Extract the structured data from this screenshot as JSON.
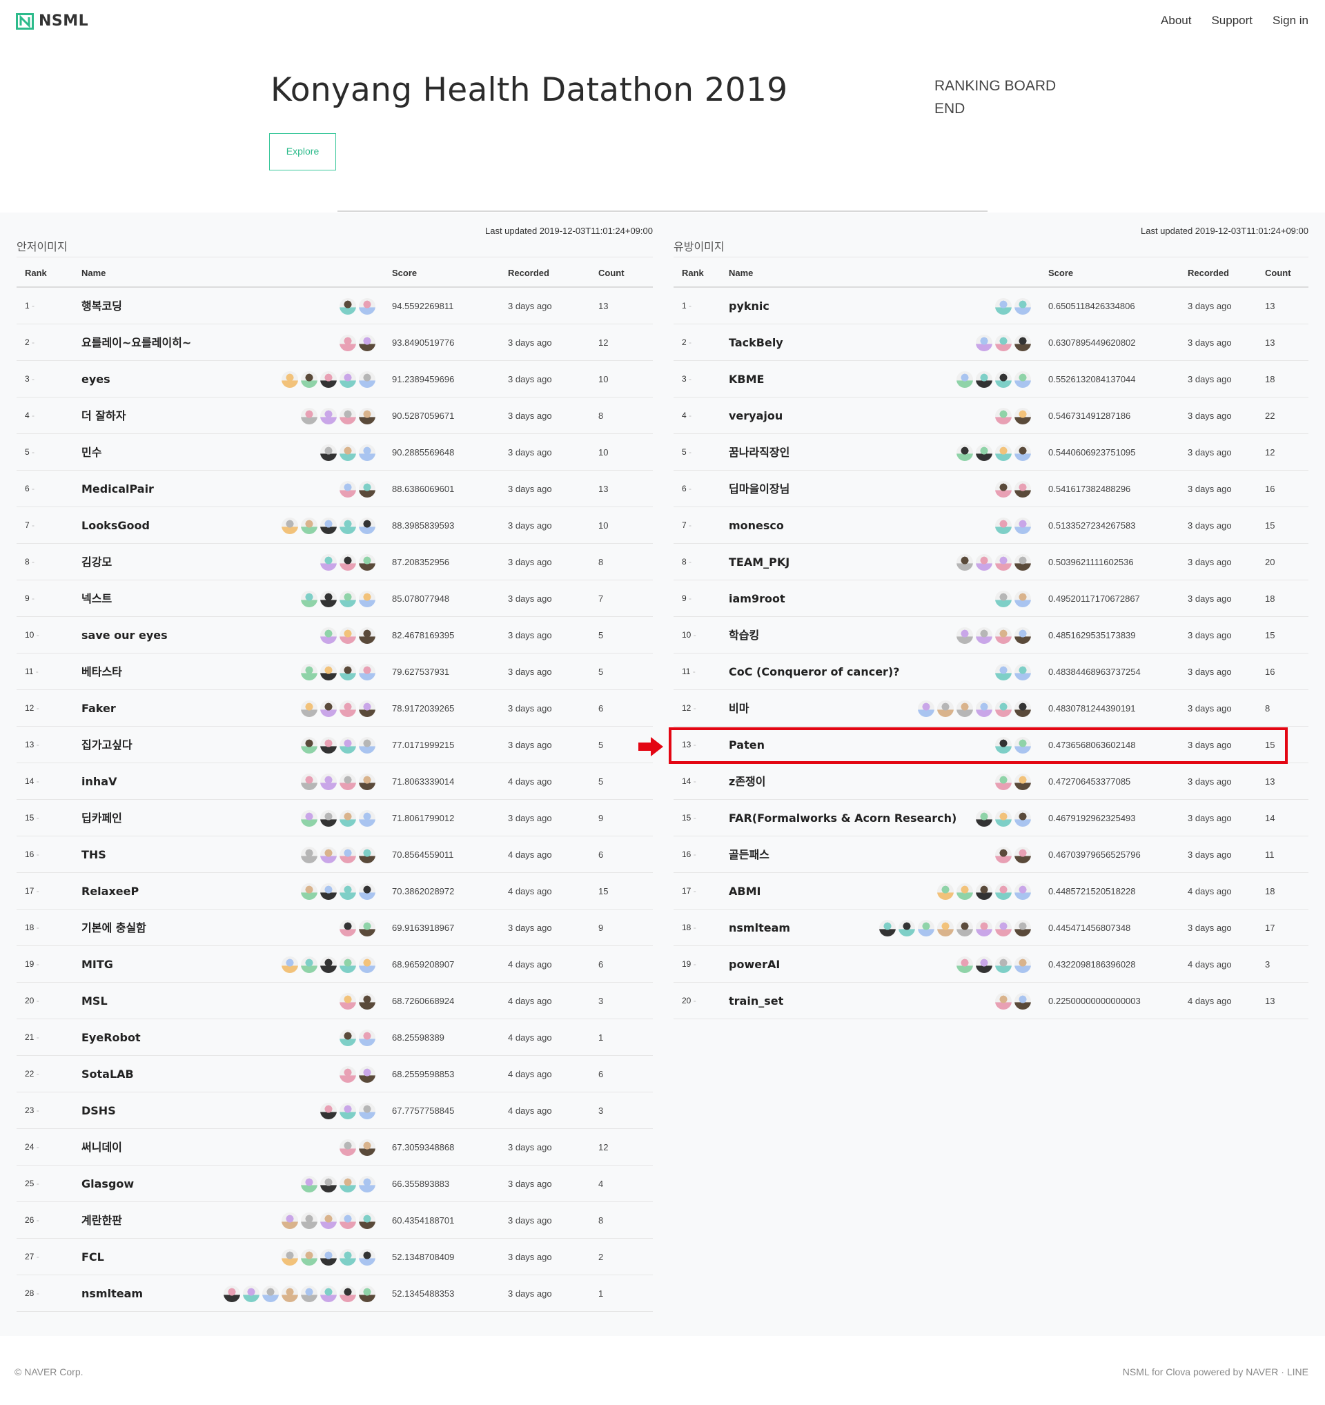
{
  "header": {
    "logo_text": "NSML",
    "nav": [
      "About",
      "Support",
      "Sign in"
    ]
  },
  "hero": {
    "title": "Konyang Health Datathon 2019",
    "explore_label": "Explore",
    "status_line1": "RANKING BOARD",
    "status_line2": "END"
  },
  "columns": {
    "rank": "Rank",
    "name": "Name",
    "score": "Score",
    "recorded": "Recorded",
    "count": "Count"
  },
  "colors": {
    "accent": "#2dbb8b",
    "highlight": "#e30613"
  },
  "boards": [
    {
      "title": "안저이미지",
      "updated": "Last updated 2019-12-03T11:01:24+09:00",
      "rows": [
        {
          "rank": "1",
          "name": "행복코딩",
          "avatars": 2,
          "score": "94.5592269811",
          "recorded": "3 days ago",
          "count": "13"
        },
        {
          "rank": "2",
          "name": "요를레이~요를레이히~",
          "avatars": 2,
          "score": "93.8490519776",
          "recorded": "3 days ago",
          "count": "12"
        },
        {
          "rank": "3",
          "name": "eyes",
          "avatars": 5,
          "score": "91.2389459696",
          "recorded": "3 days ago",
          "count": "10"
        },
        {
          "rank": "4",
          "name": "더 잘하자",
          "avatars": 4,
          "score": "90.5287059671",
          "recorded": "3 days ago",
          "count": "8"
        },
        {
          "rank": "5",
          "name": "민수",
          "avatars": 3,
          "score": "90.2885569648",
          "recorded": "3 days ago",
          "count": "10"
        },
        {
          "rank": "6",
          "name": "MedicalPair",
          "avatars": 2,
          "score": "88.6386069601",
          "recorded": "3 days ago",
          "count": "13"
        },
        {
          "rank": "7",
          "name": "LooksGood",
          "avatars": 5,
          "score": "88.3985839593",
          "recorded": "3 days ago",
          "count": "10"
        },
        {
          "rank": "8",
          "name": "김강모",
          "avatars": 3,
          "score": "87.208352956",
          "recorded": "3 days ago",
          "count": "8"
        },
        {
          "rank": "9",
          "name": "넥스트",
          "avatars": 4,
          "score": "85.078077948",
          "recorded": "3 days ago",
          "count": "7"
        },
        {
          "rank": "10",
          "name": "save our eyes",
          "avatars": 3,
          "score": "82.4678169395",
          "recorded": "3 days ago",
          "count": "5"
        },
        {
          "rank": "11",
          "name": "베타스타",
          "avatars": 4,
          "score": "79.627537931",
          "recorded": "3 days ago",
          "count": "5"
        },
        {
          "rank": "12",
          "name": "Faker",
          "avatars": 4,
          "score": "78.9172039265",
          "recorded": "3 days ago",
          "count": "6"
        },
        {
          "rank": "13",
          "name": "집가고싶다",
          "avatars": 4,
          "score": "77.0171999215",
          "recorded": "3 days ago",
          "count": "5"
        },
        {
          "rank": "14",
          "name": "inhaV",
          "avatars": 4,
          "score": "71.8063339014",
          "recorded": "4 days ago",
          "count": "5"
        },
        {
          "rank": "15",
          "name": "딥카페인",
          "avatars": 4,
          "score": "71.8061799012",
          "recorded": "3 days ago",
          "count": "9"
        },
        {
          "rank": "16",
          "name": "THS",
          "avatars": 4,
          "score": "70.8564559011",
          "recorded": "4 days ago",
          "count": "6"
        },
        {
          "rank": "17",
          "name": "RelaxeeP",
          "avatars": 4,
          "score": "70.3862028972",
          "recorded": "4 days ago",
          "count": "15"
        },
        {
          "rank": "18",
          "name": "기본에 충실함",
          "avatars": 2,
          "score": "69.9163918967",
          "recorded": "3 days ago",
          "count": "9"
        },
        {
          "rank": "19",
          "name": "MITG",
          "avatars": 5,
          "score": "68.9659208907",
          "recorded": "4 days ago",
          "count": "6"
        },
        {
          "rank": "20",
          "name": "MSL",
          "avatars": 2,
          "score": "68.7260668924",
          "recorded": "4 days ago",
          "count": "3"
        },
        {
          "rank": "21",
          "name": "EyeRobot",
          "avatars": 2,
          "score": "68.25598389",
          "recorded": "4 days ago",
          "count": "1"
        },
        {
          "rank": "22",
          "name": "SotaLAB",
          "avatars": 2,
          "score": "68.2559598853",
          "recorded": "4 days ago",
          "count": "6"
        },
        {
          "rank": "23",
          "name": "DSHS",
          "avatars": 3,
          "score": "67.7757758845",
          "recorded": "4 days ago",
          "count": "3"
        },
        {
          "rank": "24",
          "name": "써니데이",
          "avatars": 2,
          "score": "67.3059348868",
          "recorded": "3 days ago",
          "count": "12"
        },
        {
          "rank": "25",
          "name": "Glasgow",
          "avatars": 4,
          "score": "66.355893883",
          "recorded": "3 days ago",
          "count": "4"
        },
        {
          "rank": "26",
          "name": "계란한판",
          "avatars": 5,
          "score": "60.4354188701",
          "recorded": "3 days ago",
          "count": "8"
        },
        {
          "rank": "27",
          "name": "FCL",
          "avatars": 5,
          "score": "52.1348708409",
          "recorded": "3 days ago",
          "count": "2"
        },
        {
          "rank": "28",
          "name": "nsmlteam",
          "avatars": 8,
          "score": "52.1345488353",
          "recorded": "3 days ago",
          "count": "1"
        }
      ]
    },
    {
      "title": "유방이미지",
      "updated": "Last updated 2019-12-03T11:01:24+09:00",
      "rows": [
        {
          "rank": "1",
          "name": "pyknic",
          "avatars": 2,
          "score": "0.6505118426334806",
          "recorded": "3 days ago",
          "count": "13"
        },
        {
          "rank": "2",
          "name": "TackBely",
          "avatars": 3,
          "score": "0.6307895449620802",
          "recorded": "3 days ago",
          "count": "13"
        },
        {
          "rank": "3",
          "name": "KBME",
          "avatars": 4,
          "score": "0.5526132084137044",
          "recorded": "3 days ago",
          "count": "18"
        },
        {
          "rank": "4",
          "name": "veryajou",
          "avatars": 2,
          "score": "0.546731491287186",
          "recorded": "3 days ago",
          "count": "22"
        },
        {
          "rank": "5",
          "name": "꿈나라직장인",
          "avatars": 4,
          "score": "0.5440606923751095",
          "recorded": "3 days ago",
          "count": "12"
        },
        {
          "rank": "6",
          "name": "딥마을이장님",
          "avatars": 2,
          "score": "0.541617382488296",
          "recorded": "3 days ago",
          "count": "16"
        },
        {
          "rank": "7",
          "name": "monesco",
          "avatars": 2,
          "score": "0.5133527234267583",
          "recorded": "3 days ago",
          "count": "15"
        },
        {
          "rank": "8",
          "name": "TEAM_PKJ",
          "avatars": 4,
          "score": "0.5039621111602536",
          "recorded": "3 days ago",
          "count": "20"
        },
        {
          "rank": "9",
          "name": "iam9root",
          "avatars": 2,
          "score": "0.49520117170672867",
          "recorded": "3 days ago",
          "count": "18"
        },
        {
          "rank": "10",
          "name": "학습킹",
          "avatars": 4,
          "score": "0.4851629535173839",
          "recorded": "3 days ago",
          "count": "15"
        },
        {
          "rank": "11",
          "name": "CoC (Conqueror of cancer)?",
          "avatars": 2,
          "score": "0.48384468963737254",
          "recorded": "3 days ago",
          "count": "16"
        },
        {
          "rank": "12",
          "name": "비마",
          "avatars": 6,
          "score": "0.4830781244390191",
          "recorded": "3 days ago",
          "count": "8"
        },
        {
          "rank": "13",
          "name": "Paten",
          "avatars": 2,
          "score": "0.4736568063602148",
          "recorded": "3 days ago",
          "count": "15"
        },
        {
          "rank": "14",
          "name": "z존쟁이",
          "avatars": 2,
          "score": "0.472706453377085",
          "recorded": "3 days ago",
          "count": "13"
        },
        {
          "rank": "15",
          "name": "FAR(Formalworks & Acorn Research)",
          "avatars": 3,
          "score": "0.4679192962325493",
          "recorded": "3 days ago",
          "count": "14"
        },
        {
          "rank": "16",
          "name": "골든패스",
          "avatars": 2,
          "score": "0.46703979656525796",
          "recorded": "3 days ago",
          "count": "11"
        },
        {
          "rank": "17",
          "name": "ABMI",
          "avatars": 5,
          "score": "0.4485721520518228",
          "recorded": "4 days ago",
          "count": "18"
        },
        {
          "rank": "18",
          "name": "nsmlteam",
          "avatars": 8,
          "score": "0.445471456807348",
          "recorded": "3 days ago",
          "count": "17"
        },
        {
          "rank": "19",
          "name": "powerAI",
          "avatars": 4,
          "score": "0.4322098186396028",
          "recorded": "4 days ago",
          "count": "3"
        },
        {
          "rank": "20",
          "name": "train_set",
          "avatars": 2,
          "score": "0.22500000000000003",
          "recorded": "4 days ago",
          "count": "13"
        }
      ]
    }
  ],
  "footer": {
    "left": "© NAVER Corp.",
    "right": "NSML for Clova powered by NAVER · LINE"
  }
}
